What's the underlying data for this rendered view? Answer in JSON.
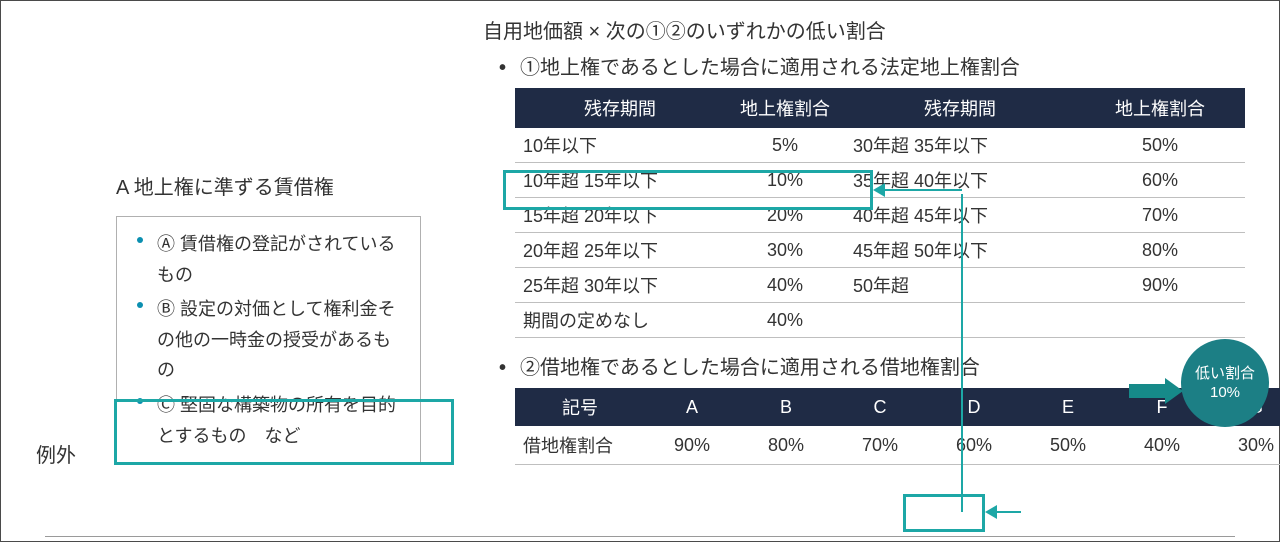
{
  "colors": {
    "header_bg": "#1f2b45",
    "header_text": "#ffffff",
    "text": "#333333",
    "border": "#bfbfbf",
    "highlight": "#1da7a6",
    "bullet": "#0b8fb0",
    "circle_bg": "#1c7f85"
  },
  "left": {
    "exception_label": "例外",
    "a_title": "A 地上権に準ずる賃借権",
    "items": [
      "Ⓐ 賃借権の登記がされているもの",
      "Ⓑ 設定の対価として権利金その他の一時金の授受があるもの",
      "Ⓒ 堅固な構築物の所有を目的とするもの　など"
    ]
  },
  "right": {
    "formula": "自用地価額 × 次の①②のいずれかの低い割合",
    "line1": "①地上権であるとした場合に適用される法定地上権割合",
    "line2": "②借地権であるとした場合に適用される借地権割合"
  },
  "table1": {
    "headers": [
      "残存期間",
      "地上権割合",
      "残存期間",
      "地上権割合"
    ],
    "rows": [
      [
        "10年以下",
        "5%",
        "30年超 35年以下",
        "50%"
      ],
      [
        "10年超 15年以下",
        "10%",
        "35年超 40年以下",
        "60%"
      ],
      [
        "15年超 20年以下",
        "20%",
        "40年超 45年以下",
        "70%"
      ],
      [
        "20年超 25年以下",
        "30%",
        "45年超 50年以下",
        "80%"
      ],
      [
        "25年超 30年以下",
        "40%",
        "50年超",
        "90%"
      ],
      [
        "期間の定めなし",
        "40%",
        "",
        ""
      ]
    ],
    "highlight_row_index": 1
  },
  "circle": {
    "line1": "低い割合",
    "line2": "10%"
  },
  "table2": {
    "header_first": "記号",
    "header_cols": [
      "A",
      "B",
      "C",
      "D",
      "E",
      "F",
      "G"
    ],
    "row_label": "借地権割合",
    "row_cols": [
      "90%",
      "80%",
      "70%",
      "60%",
      "50%",
      "40%",
      "30%"
    ],
    "highlight_col_index": 3
  }
}
